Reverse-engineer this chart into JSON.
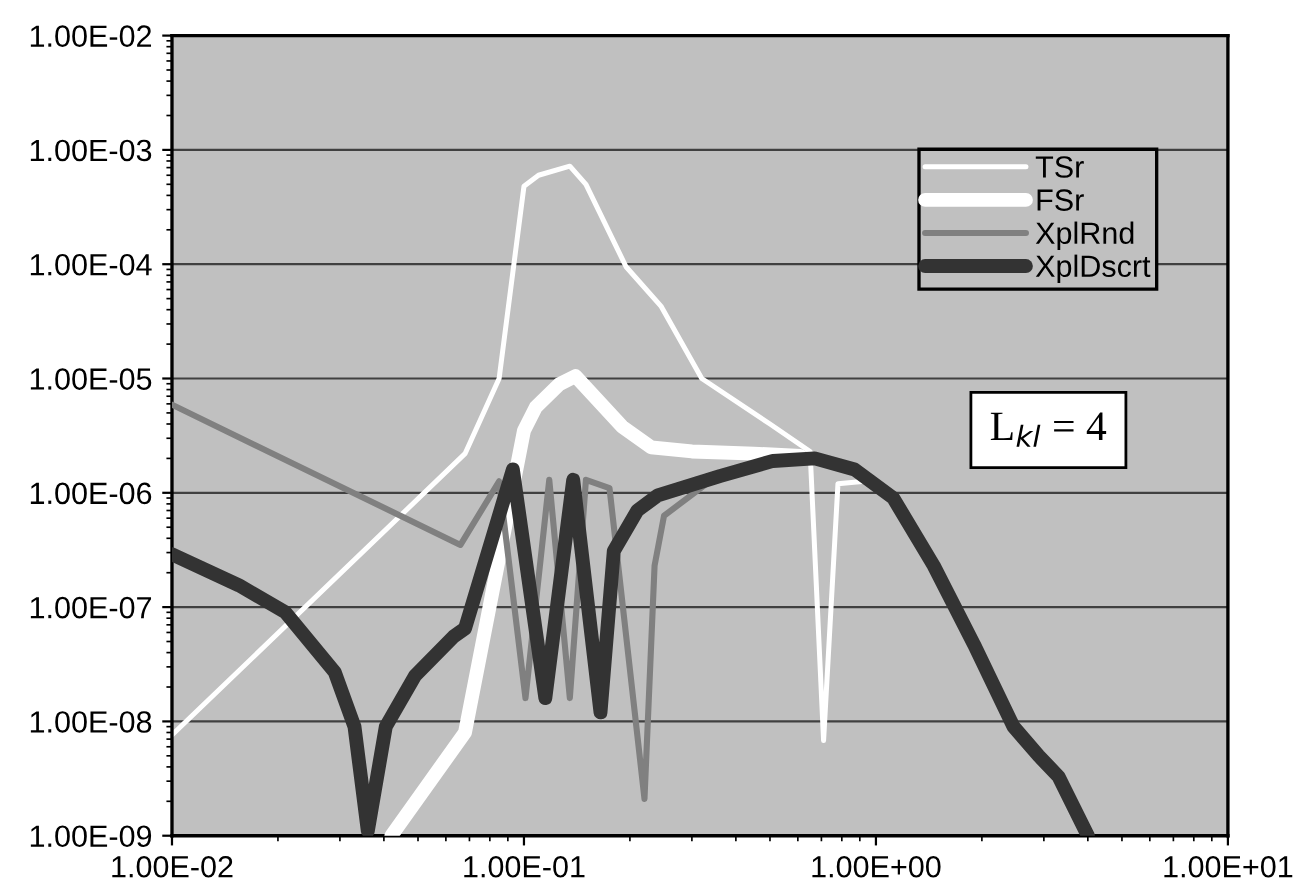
{
  "chart_data": {
    "type": "line",
    "log": "xy",
    "grid": "y",
    "legend": "top right",
    "xlim": [
      0.01,
      10
    ],
    "ylim": [
      1e-09,
      0.01
    ],
    "xticks": [
      {
        "value": 0.01,
        "label": "1.00E-02"
      },
      {
        "value": 0.1,
        "label": "1.00E-01"
      },
      {
        "value": 1,
        "label": "1.00E+00"
      },
      {
        "value": 10,
        "label": "1.00E+01"
      }
    ],
    "yticks": [
      {
        "value": 1e-09,
        "label": "1.00E-09"
      },
      {
        "value": 1e-08,
        "label": "1.00E-08"
      },
      {
        "value": 1e-07,
        "label": "1.00E-07"
      },
      {
        "value": 1e-06,
        "label": "1.00E-06"
      },
      {
        "value": 1e-05,
        "label": "1.00E-05"
      },
      {
        "value": 0.0001,
        "label": "1.00E-04"
      },
      {
        "value": 0.001,
        "label": "1.00E-03"
      },
      {
        "value": 0.01,
        "label": "1.00E-02"
      }
    ],
    "annotations": [
      "L$_{kl}$ = 4"
    ],
    "series": [
      {
        "name": "TSr",
        "color": "#ffffff",
        "x": [
          0.01,
          0.068,
          0.085,
          0.1,
          0.11,
          0.135,
          0.15,
          0.195,
          0.245,
          0.32,
          0.5,
          0.65,
          0.71,
          0.78,
          0.93
        ],
        "values": [
          7.6e-09,
          2.2e-06,
          1e-05,
          0.00048,
          0.0006,
          0.00072,
          0.0005,
          9.5e-05,
          4.3e-05,
          1e-05,
          4e-06,
          2.3e-06,
          6.8e-09,
          1.2e-06,
          1.26e-06
        ]
      },
      {
        "name": "FSr",
        "color": "#ffffff",
        "x": [
          0.042,
          0.068,
          0.1,
          0.108,
          0.126,
          0.14,
          0.19,
          0.23,
          0.3,
          0.45,
          0.61
        ],
        "values": [
          1e-09,
          8e-09,
          3.5e-06,
          5.6e-06,
          8.9e-06,
          1.05e-05,
          3.8e-06,
          2.5e-06,
          2.3e-06,
          2.2e-06,
          2.1e-06
        ]
      },
      {
        "name": "XplRnd",
        "color": "#808080",
        "x": [
          0.01,
          0.066,
          0.085,
          0.101,
          0.118,
          0.135,
          0.15,
          0.175,
          0.22,
          0.235,
          0.25,
          0.33,
          0.47,
          0.6
        ],
        "values": [
          5.9e-06,
          3.5e-07,
          1.26e-06,
          1.6e-08,
          1.3e-06,
          1.6e-08,
          1.3e-06,
          1.1e-06,
          2.1e-09,
          2.3e-07,
          6.3e-07,
          1.2e-06,
          1.8e-06,
          1.95e-06
        ]
      },
      {
        "name": "XplDscrt",
        "color": "#333333",
        "x": [
          0.01,
          0.0155,
          0.021,
          0.029,
          0.033,
          0.036,
          0.0405,
          0.049,
          0.063,
          0.068,
          0.093,
          0.115,
          0.138,
          0.165,
          0.18,
          0.21,
          0.24,
          0.36,
          0.51,
          0.67,
          0.87,
          1.12,
          1.46,
          1.9,
          2.46,
          2.9,
          3.3,
          4.0
        ],
        "values": [
          2.9e-07,
          1.55e-07,
          9e-08,
          2.7e-08,
          9e-09,
          1.1e-09,
          9e-09,
          2.5e-08,
          5.5e-08,
          6.5e-08,
          1.6e-06,
          1.6e-08,
          1.3e-06,
          1.2e-08,
          3.1e-07,
          7e-07,
          9.5e-07,
          1.4e-06,
          1.9e-06,
          2e-06,
          1.6e-06,
          9e-07,
          2.3e-07,
          4.7e-08,
          9e-09,
          5e-09,
          3.3e-09,
          1e-09
        ]
      }
    ]
  }
}
